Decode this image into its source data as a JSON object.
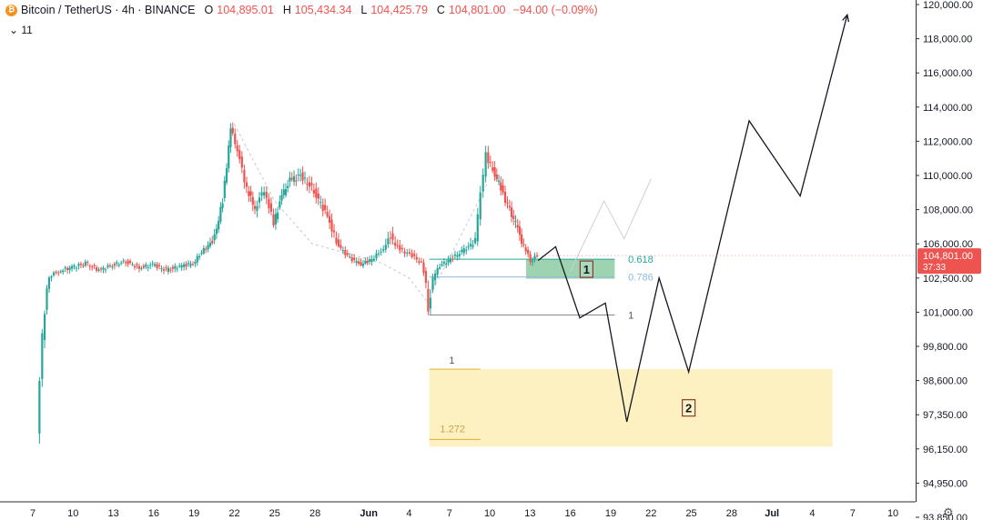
{
  "header": {
    "symbol": "Bitcoin / TetherUS · 4h · BINANCE",
    "o_label": "O",
    "o_value": "104,895.01",
    "h_label": "H",
    "h_value": "105,434.34",
    "l_label": "L",
    "l_value": "104,425.79",
    "c_label": "C",
    "c_value": "104,801.00",
    "change": "−94.00 (−0.09%)",
    "indicators_toggle": "⌄ 11",
    "icon": "bitcoin-icon"
  },
  "colors": {
    "up": "#26a69a",
    "down": "#ef5350",
    "last_price_bg": "#ef5350",
    "fib_green": "#26a69a",
    "fib_blue": "#90b8e0",
    "fib_yellow": "#fdeeb7",
    "path": "#131722"
  },
  "chart_data": {
    "type": "candlestick",
    "title": "Bitcoin / TetherUS · 4h · BINANCE",
    "y_axis": {
      "ticks": [
        "120,000.00",
        "118,000.00",
        "116,000.00",
        "114,000.00",
        "112,000.00",
        "110,000.00",
        "108,000.00",
        "106,000.00",
        "102,500.00",
        "101,000.00",
        "99,800.00",
        "98,600.00",
        "97,350.00",
        "96,150.00",
        "94,950.00",
        "93,850.00"
      ],
      "tick_values": [
        120000,
        118000,
        116000,
        114000,
        112000,
        110000,
        108000,
        106000,
        102500,
        101000,
        99800,
        98600,
        97350,
        96150,
        94950,
        93850
      ]
    },
    "x_axis": {
      "ticks": [
        "7",
        "10",
        "13",
        "16",
        "19",
        "22",
        "25",
        "28",
        "Jun",
        "4",
        "7",
        "10",
        "13",
        "16",
        "19",
        "22",
        "25",
        "28",
        "Jul",
        "4",
        "7",
        "10"
      ],
      "tick_days": [
        7,
        10,
        13,
        16,
        19,
        22,
        25,
        28,
        32,
        35,
        38,
        41,
        44,
        47,
        50,
        53,
        56,
        59,
        62,
        65,
        68,
        71
      ]
    },
    "last_price": {
      "value": "104,801.00",
      "countdown": "37:33",
      "y": 104801
    },
    "price_trace": [
      [
        7.4,
        96800
      ],
      [
        7.8,
        100200
      ],
      [
        8.3,
        102700
      ],
      [
        9,
        103200
      ],
      [
        10,
        103600
      ],
      [
        11,
        104000
      ],
      [
        12,
        103300
      ],
      [
        13,
        103800
      ],
      [
        14,
        104200
      ],
      [
        15,
        103500
      ],
      [
        16,
        103900
      ],
      [
        17,
        103300
      ],
      [
        18,
        103700
      ],
      [
        19,
        104000
      ],
      [
        19.8,
        105400
      ],
      [
        20.6,
        106400
      ],
      [
        21.2,
        108500
      ],
      [
        21.8,
        112700
      ],
      [
        22.3,
        111500
      ],
      [
        23,
        109200
      ],
      [
        23.6,
        108100
      ],
      [
        24.3,
        109200
      ],
      [
        25,
        107200
      ],
      [
        25.6,
        108800
      ],
      [
        26.2,
        109700
      ],
      [
        27,
        110000
      ],
      [
        28,
        109100
      ],
      [
        29,
        107600
      ],
      [
        30,
        105400
      ],
      [
        31,
        104200
      ],
      [
        31.5,
        103900
      ],
      [
        32.3,
        104400
      ],
      [
        33,
        105300
      ],
      [
        33.7,
        106500
      ],
      [
        34.4,
        105400
      ],
      [
        35.3,
        104800
      ],
      [
        36,
        104000
      ],
      [
        36.5,
        101200
      ],
      [
        37.2,
        103600
      ],
      [
        38,
        104300
      ],
      [
        39,
        105200
      ],
      [
        40,
        106200
      ],
      [
        40.4,
        109000
      ],
      [
        40.8,
        111200
      ],
      [
        41.3,
        110300
      ],
      [
        41.9,
        109300
      ],
      [
        42.4,
        108200
      ],
      [
        43,
        107200
      ],
      [
        43.6,
        105800
      ],
      [
        44.1,
        104300
      ],
      [
        44.6,
        104801
      ]
    ],
    "fib_retracement": {
      "levels": [
        {
          "label": "0.618",
          "price": 104430
        },
        {
          "label": "0.786",
          "price": 102610
        },
        {
          "label": "1",
          "price": 100900
        }
      ],
      "zone_label": "1"
    },
    "fib_extension": {
      "levels": [
        {
          "label": "1",
          "price": 99000
        },
        {
          "label": "1.272",
          "price": 96480
        }
      ],
      "zone_label": "2"
    },
    "projection_path": [
      [
        44.6,
        104300
      ],
      [
        45.9,
        105700
      ],
      [
        47.7,
        100800
      ],
      [
        49.6,
        101400
      ],
      [
        51.2,
        97100
      ],
      [
        53.6,
        102500
      ],
      [
        55.8,
        98900
      ],
      [
        60.3,
        113200
      ],
      [
        64.1,
        108800
      ],
      [
        67.6,
        119400
      ]
    ],
    "alt_projection_path": [
      [
        47,
        103200
      ],
      [
        49.5,
        108500
      ],
      [
        51,
        106300
      ],
      [
        53,
        109800
      ]
    ],
    "elliott_trace": [
      [
        22,
        113000
      ],
      [
        25,
        108500
      ],
      [
        27.8,
        106000
      ],
      [
        31,
        104800
      ],
      [
        33,
        104000
      ],
      [
        35,
        102500
      ],
      [
        36.3,
        101500
      ],
      [
        38,
        104500
      ],
      [
        40.8,
        109500
      ]
    ]
  }
}
